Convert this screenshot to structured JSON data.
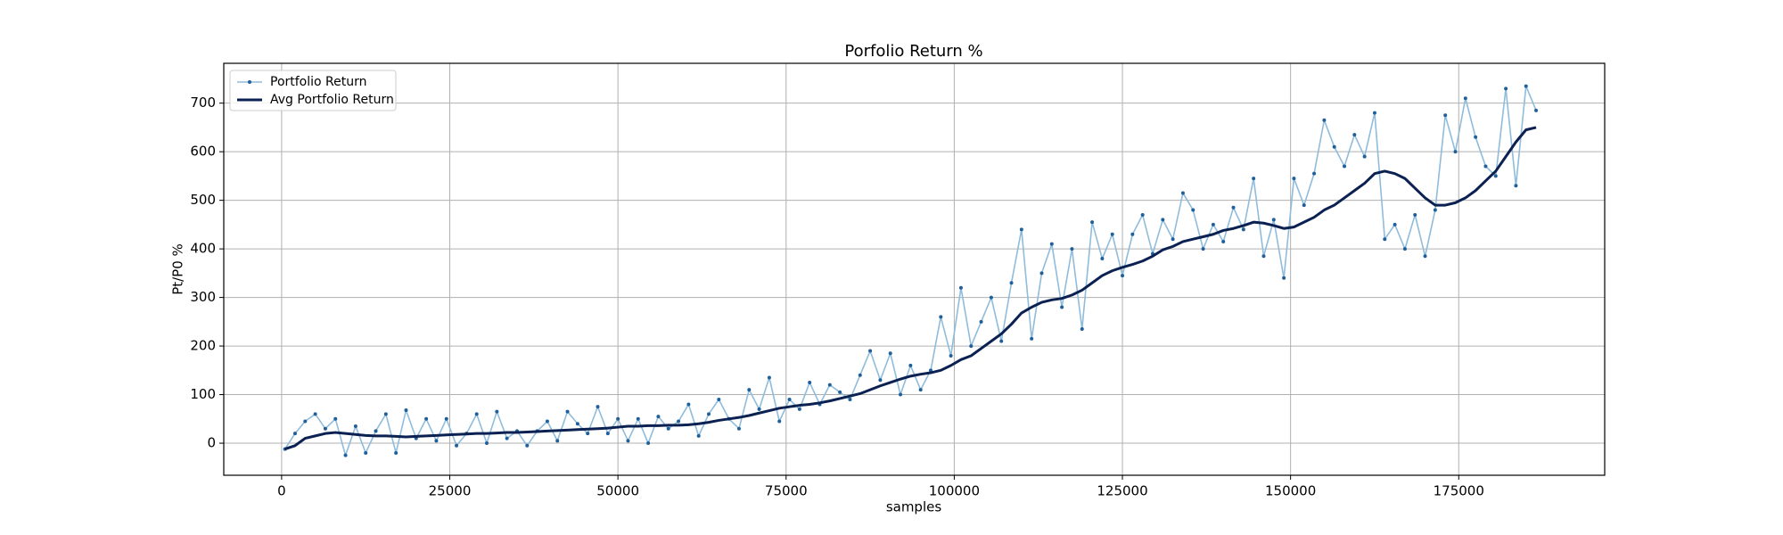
{
  "chart_data": {
    "type": "line",
    "title": "Porfolio Return %",
    "x_label": "samples",
    "y_label": "Pt/P0 %",
    "x": [
      500,
      2000,
      3500,
      5000,
      6500,
      8000,
      9500,
      11000,
      12500,
      14000,
      15500,
      17000,
      18500,
      20000,
      21500,
      23000,
      24500,
      26000,
      27500,
      29000,
      30500,
      32000,
      33500,
      35000,
      36500,
      38000,
      39500,
      41000,
      42500,
      44000,
      45500,
      47000,
      48500,
      50000,
      51500,
      53000,
      54500,
      56000,
      57500,
      59000,
      60500,
      62000,
      63500,
      65000,
      66500,
      68000,
      69500,
      71000,
      72500,
      74000,
      75500,
      77000,
      78500,
      80000,
      81500,
      83000,
      84500,
      86000,
      87500,
      89000,
      90500,
      92000,
      93500,
      95000,
      96500,
      98000,
      99500,
      101000,
      102500,
      104000,
      105500,
      107000,
      108500,
      110000,
      111500,
      113000,
      114500,
      116000,
      117500,
      119000,
      120500,
      122000,
      123500,
      125000,
      126500,
      128000,
      129500,
      131000,
      132500,
      134000,
      135500,
      137000,
      138500,
      140000,
      141500,
      143000,
      144500,
      146000,
      147500,
      149000,
      150500,
      152000,
      153500,
      155000,
      156500,
      158000,
      159500,
      161000,
      162500,
      164000,
      165500,
      167000,
      168500,
      170000,
      171500,
      173000,
      174500,
      176000,
      177500,
      179000,
      180500,
      182000,
      183500,
      185000,
      186500
    ],
    "series": [
      {
        "name": "Portfolio Return",
        "color": "#8fbcdc",
        "marker_color": "#1f5f9a",
        "values": [
          -12,
          20,
          45,
          60,
          30,
          50,
          -25,
          35,
          -20,
          25,
          60,
          -20,
          68,
          10,
          50,
          5,
          50,
          -5,
          20,
          60,
          0,
          65,
          10,
          25,
          -5,
          25,
          45,
          5,
          65,
          40,
          20,
          75,
          20,
          50,
          5,
          50,
          0,
          55,
          30,
          45,
          80,
          15,
          60,
          90,
          50,
          30,
          110,
          70,
          135,
          45,
          90,
          70,
          125,
          80,
          120,
          105,
          90,
          140,
          190,
          130,
          185,
          100,
          160,
          110,
          150,
          260,
          180,
          320,
          200,
          250,
          300,
          210,
          330,
          440,
          215,
          350,
          410,
          280,
          400,
          235,
          455,
          380,
          430,
          345,
          430,
          470,
          390,
          460,
          420,
          515,
          480,
          400,
          450,
          415,
          485,
          440,
          545,
          385,
          460,
          340,
          545,
          490,
          555,
          665,
          610,
          570,
          635,
          590,
          680,
          420,
          450,
          400,
          470,
          385,
          480,
          675,
          600,
          710,
          630,
          570,
          550,
          730,
          530,
          735,
          685
        ]
      },
      {
        "name": "Avg Portfolio Return",
        "color": "#0b2152",
        "values": [
          -12,
          -5,
          10,
          15,
          20,
          22,
          20,
          18,
          16,
          15,
          15,
          14,
          13,
          14,
          15,
          16,
          17,
          18,
          19,
          20,
          20,
          21,
          22,
          22,
          23,
          24,
          25,
          26,
          27,
          28,
          29,
          30,
          31,
          33,
          35,
          35,
          36,
          36,
          37,
          37,
          38,
          40,
          43,
          47,
          50,
          53,
          57,
          62,
          67,
          72,
          75,
          78,
          80,
          83,
          87,
          92,
          97,
          102,
          110,
          118,
          125,
          132,
          138,
          142,
          145,
          150,
          160,
          172,
          180,
          195,
          210,
          225,
          245,
          268,
          280,
          290,
          295,
          298,
          305,
          315,
          330,
          345,
          355,
          362,
          368,
          375,
          385,
          398,
          405,
          415,
          420,
          425,
          430,
          438,
          442,
          448,
          455,
          453,
          448,
          442,
          445,
          455,
          465,
          480,
          490,
          505,
          520,
          535,
          555,
          560,
          555,
          545,
          525,
          505,
          490,
          490,
          495,
          505,
          520,
          540,
          560,
          590,
          620,
          645,
          650
        ]
      }
    ],
    "xlim": [
      -8600,
      196700
    ],
    "ylim": [
      -66,
      782
    ],
    "xticks": [
      0,
      25000,
      50000,
      75000,
      100000,
      125000,
      150000,
      175000
    ],
    "yticks": [
      0,
      100,
      200,
      300,
      400,
      500,
      600,
      700
    ],
    "grid": true,
    "legend": "upper left"
  }
}
